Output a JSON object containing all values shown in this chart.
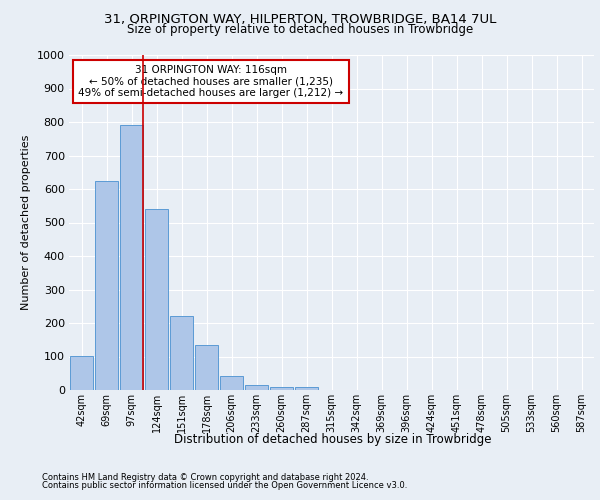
{
  "title_line1": "31, ORPINGTON WAY, HILPERTON, TROWBRIDGE, BA14 7UL",
  "title_line2": "Size of property relative to detached houses in Trowbridge",
  "xlabel": "Distribution of detached houses by size in Trowbridge",
  "ylabel": "Number of detached properties",
  "bar_labels": [
    "42sqm",
    "69sqm",
    "97sqm",
    "124sqm",
    "151sqm",
    "178sqm",
    "206sqm",
    "233sqm",
    "260sqm",
    "287sqm",
    "315sqm",
    "342sqm",
    "369sqm",
    "396sqm",
    "424sqm",
    "451sqm",
    "478sqm",
    "505sqm",
    "533sqm",
    "560sqm",
    "587sqm"
  ],
  "bar_values": [
    102,
    625,
    790,
    540,
    220,
    135,
    42,
    15,
    10,
    8,
    0,
    0,
    0,
    0,
    0,
    0,
    0,
    0,
    0,
    0,
    0
  ],
  "bar_color": "#aec6e8",
  "bar_edgecolor": "#5b9bd5",
  "vline_x_index": 2,
  "vline_color": "#cc0000",
  "annotation_text": "31 ORPINGTON WAY: 116sqm\n← 50% of detached houses are smaller (1,235)\n49% of semi-detached houses are larger (1,212) →",
  "annotation_box_edgecolor": "#cc0000",
  "annotation_box_facecolor": "#ffffff",
  "bg_color": "#e8eef5",
  "plot_bg_color": "#e8eef5",
  "grid_color": "#ffffff",
  "ylim": [
    0,
    1000
  ],
  "yticks": [
    0,
    100,
    200,
    300,
    400,
    500,
    600,
    700,
    800,
    900,
    1000
  ],
  "footer_line1": "Contains HM Land Registry data © Crown copyright and database right 2024.",
  "footer_line2": "Contains public sector information licensed under the Open Government Licence v3.0."
}
